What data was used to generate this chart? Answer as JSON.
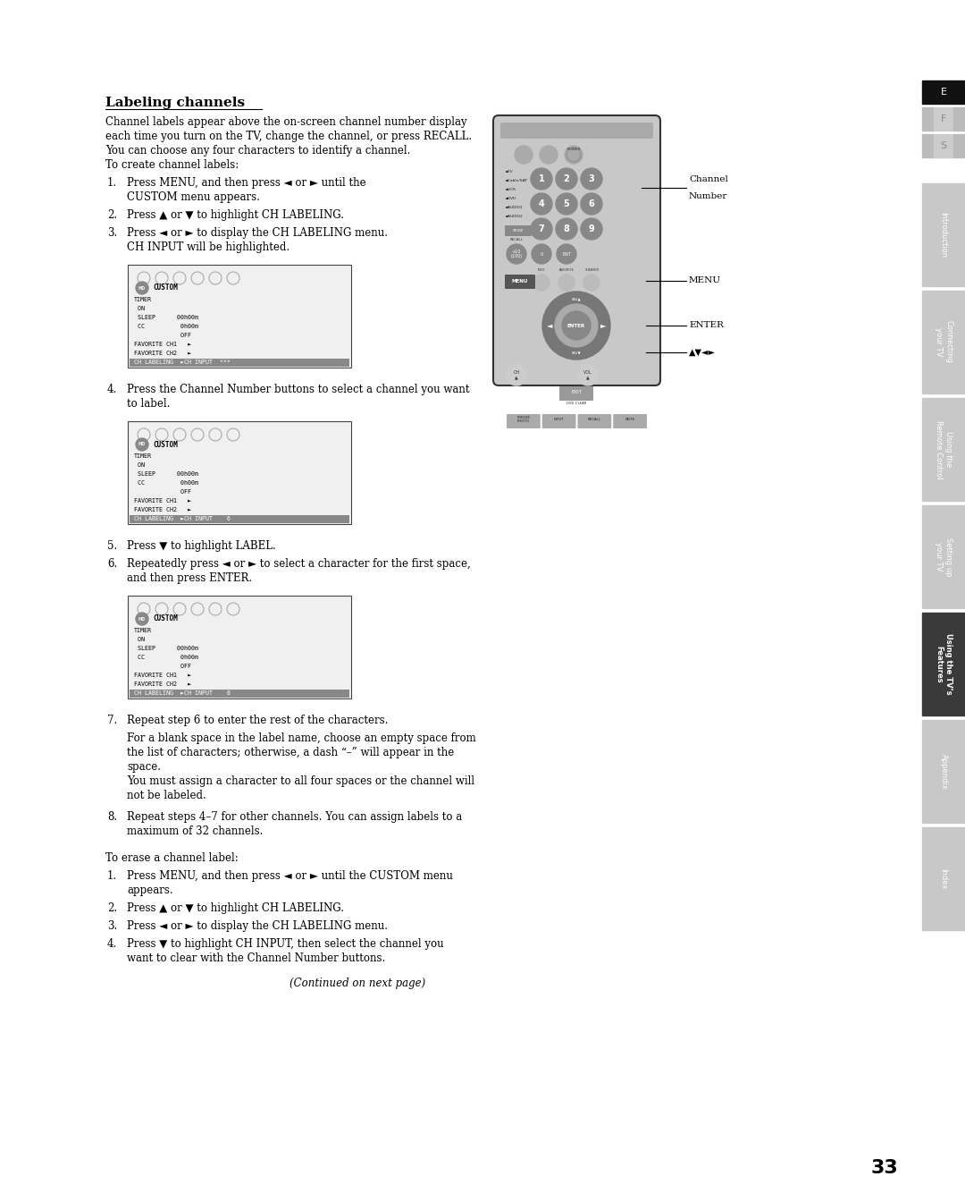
{
  "page_bg": "#ffffff",
  "title": "Labeling channels",
  "page_number": "33",
  "body_intro": [
    "Channel labels appear above the on-screen channel number display",
    "each time you turn on the TV, change the channel, or press RECALL.",
    "You can choose any four characters to identify a channel.",
    "To create channel labels:"
  ],
  "steps_create": [
    [
      "1.",
      "Press MENU, and then press ◄ or ► until the",
      "CUSTOM menu appears."
    ],
    [
      "2.",
      "Press ▲ or ▼ to highlight CH LABELING."
    ],
    [
      "3.",
      "Press ◄ or ► to display the CH LABELING menu.",
      "CH INPUT will be highlighted."
    ]
  ],
  "step4": [
    "4.",
    "Press the Channel Number buttons to select a channel you want",
    "to label."
  ],
  "steps_56": [
    [
      "5.",
      "Press ▼ to highlight LABEL."
    ],
    [
      "6.",
      "Repeatedly press ◄ or ► to select a character for the first space,",
      "and then press ENTER."
    ]
  ],
  "step7_main": [
    "7.",
    "Repeat step 6 to enter the rest of the characters."
  ],
  "step7_extra": [
    "For a blank space in the label name, choose an empty space from",
    "the list of characters; otherwise, a dash “–” will appear in the",
    "space.",
    "You must assign a character to all four spaces or the channel will",
    "not be labeled."
  ],
  "step8": [
    "8.",
    "Repeat steps 4–7 for other channels. You can assign labels to a",
    "maximum of 32 channels."
  ],
  "erase_title": "To erase a channel label:",
  "steps_erase": [
    [
      "1.",
      "Press MENU, and then press ◄ or ► until the CUSTOM menu",
      "appears."
    ],
    [
      "2.",
      "Press ▲ or ▼ to highlight CH LABELING."
    ],
    [
      "3.",
      "Press ◄ or ► to display the CH LABELING menu."
    ],
    [
      "4.",
      "Press ▼ to highlight CH INPUT, then select the channel you",
      "want to clear with the Channel Number buttons."
    ]
  ],
  "continued": "(Continued on next page)",
  "sidebar_efs": [
    {
      "label": "E",
      "active": true
    },
    {
      "label": "F",
      "active": false
    },
    {
      "label": "S",
      "active": false
    }
  ],
  "sidebar_sections": [
    {
      "label": "Introduction",
      "active": false
    },
    {
      "label": "Connecting\nyour TV",
      "active": false
    },
    {
      "label": "Using the\nRemote Control",
      "active": false
    },
    {
      "label": "Setting up\nyour TV",
      "active": false
    },
    {
      "label": "Using the TV’s\nFeatures",
      "active": true
    },
    {
      "label": "Appendix",
      "active": false
    },
    {
      "label": "Index",
      "active": false
    }
  ]
}
